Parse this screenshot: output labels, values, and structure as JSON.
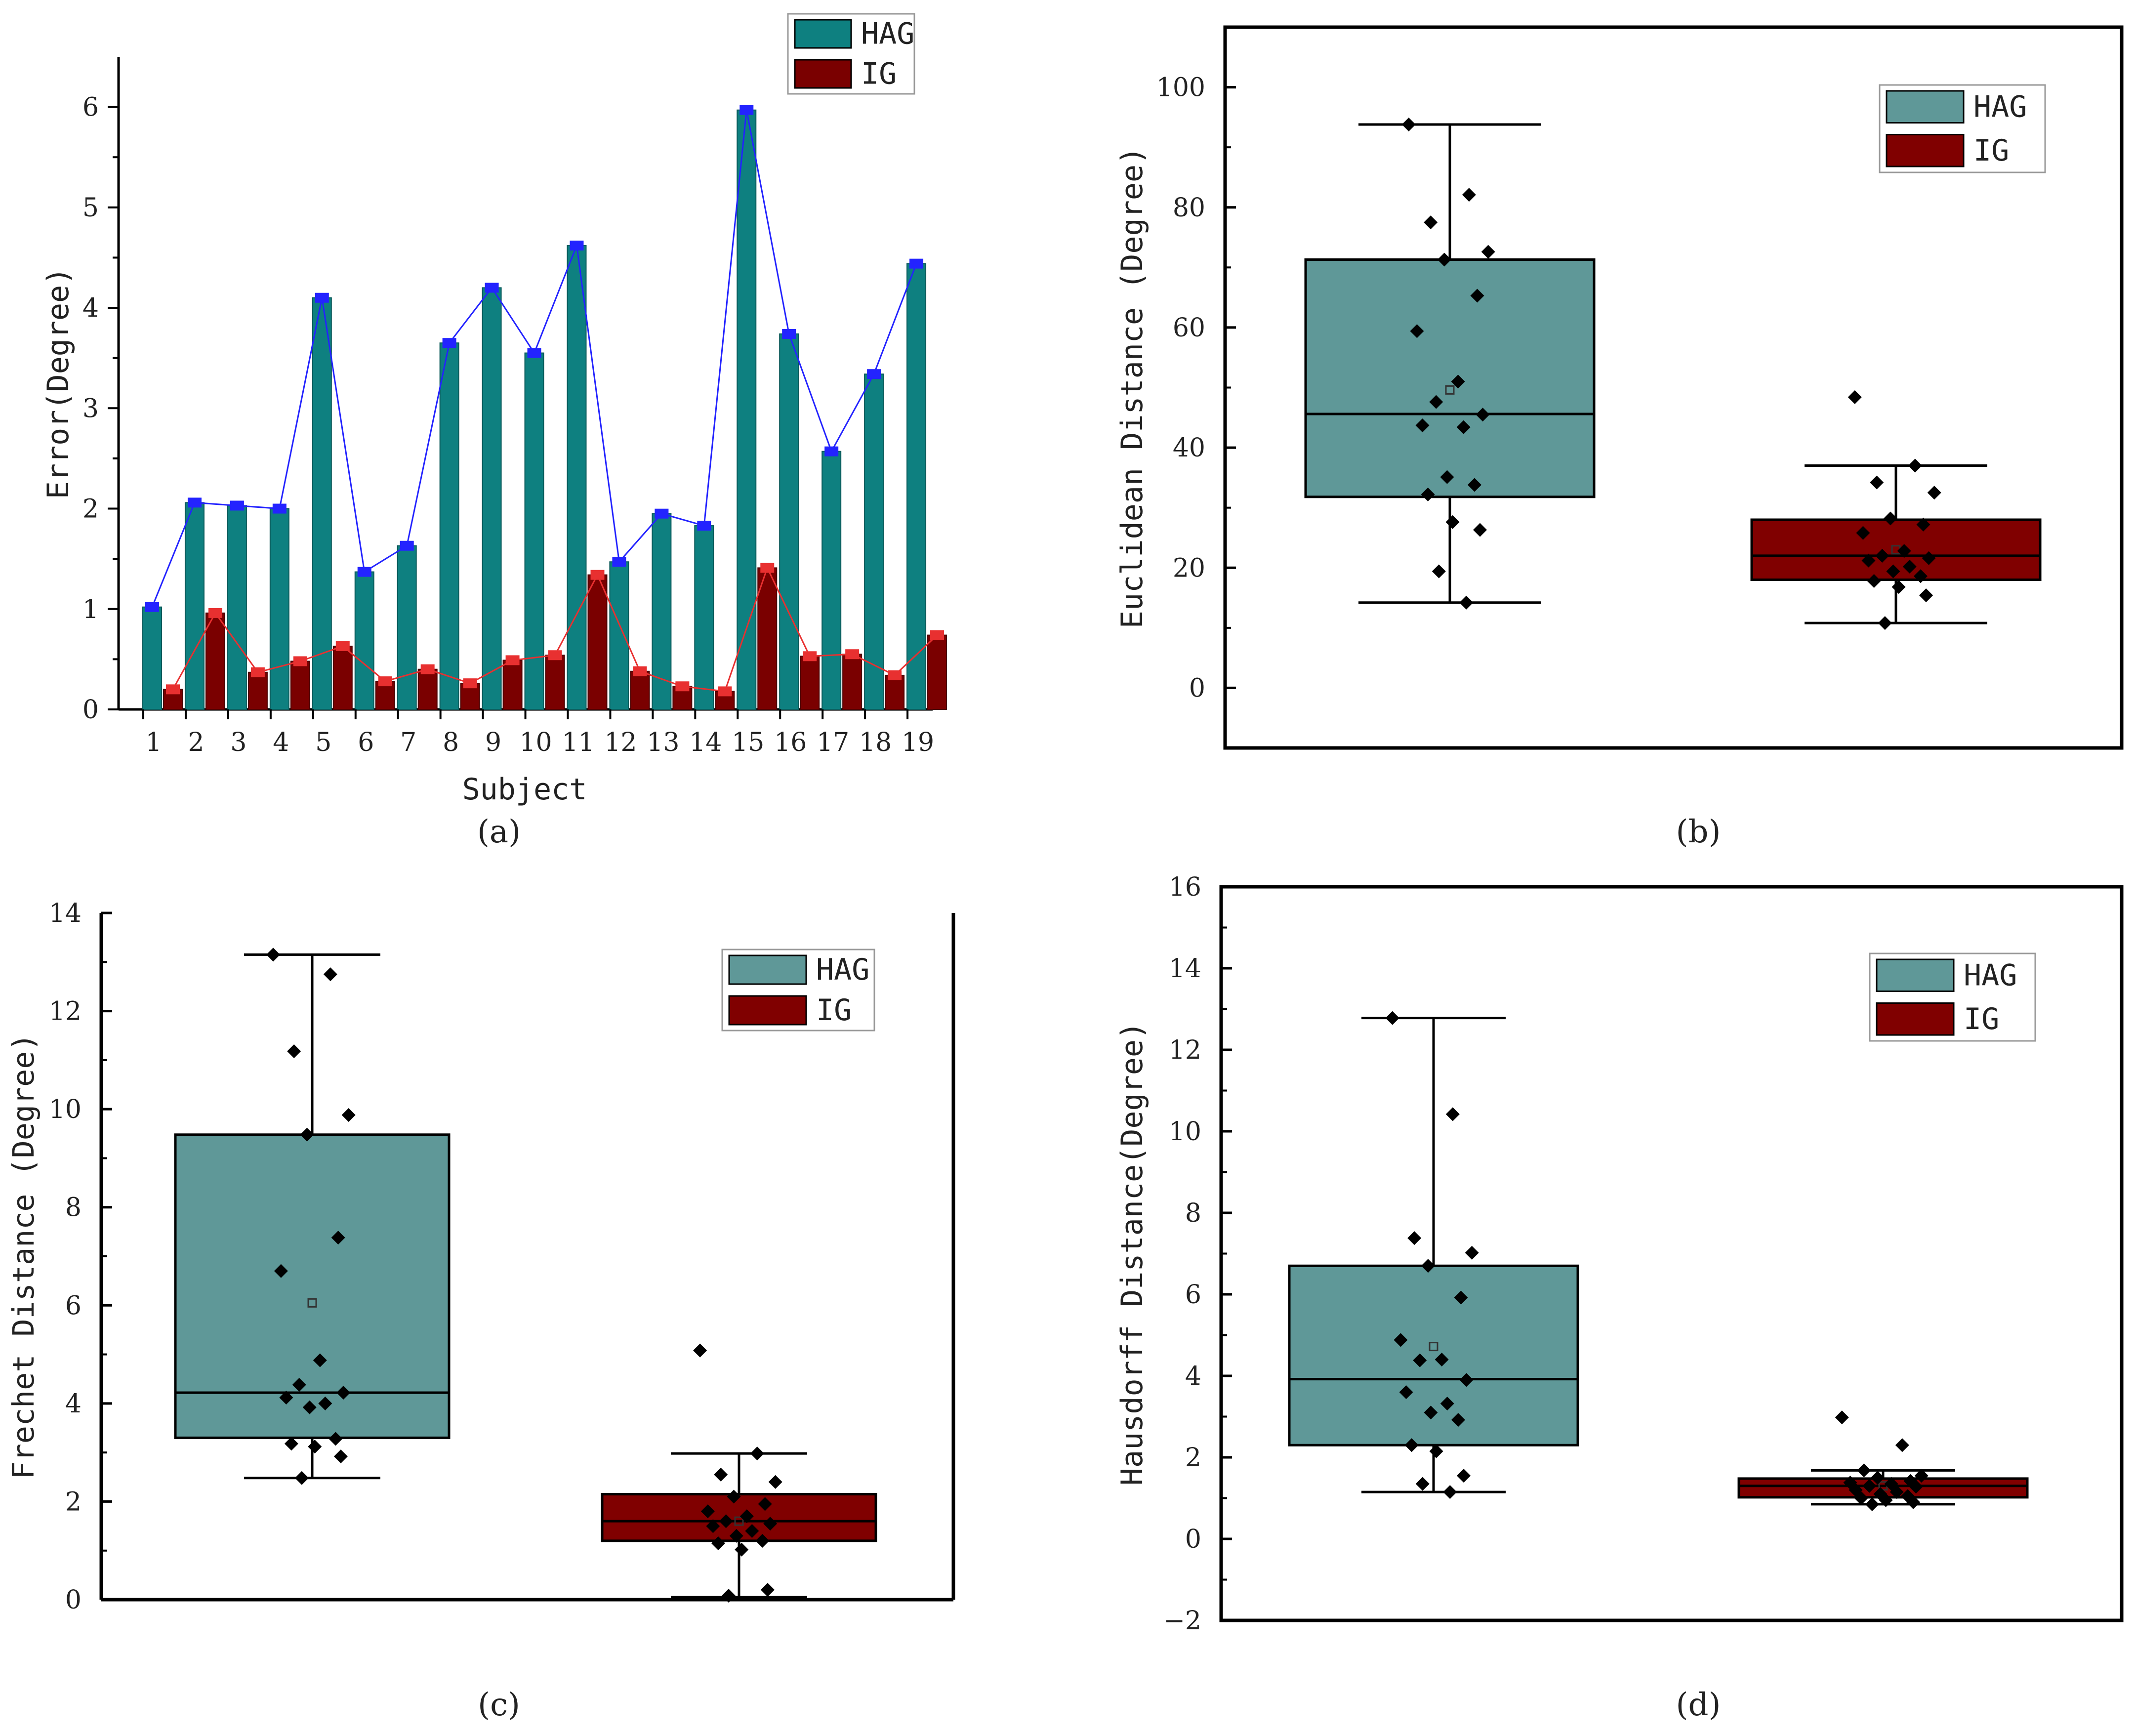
{
  "colors": {
    "hag_bar": "#0e8080",
    "ig_bar": "#7a0000",
    "hag_line": "#2323ff",
    "ig_line": "#e83030",
    "hag_box": "#5f9898",
    "ig_box": "#800000",
    "axis": "#000000"
  },
  "chart_data": [
    {
      "type": "bar",
      "caption": "(a)",
      "xlabel": "Subject",
      "ylabel": "Error(Degree)",
      "ylim": [
        0,
        6.5
      ],
      "yticks": [
        "0",
        "1",
        "2",
        "3",
        "4",
        "5",
        "6"
      ],
      "categories": [
        "1",
        "2",
        "3",
        "4",
        "5",
        "6",
        "7",
        "8",
        "9",
        "10",
        "11",
        "12",
        "13",
        "14",
        "15",
        "16",
        "17",
        "18",
        "19"
      ],
      "legend": {
        "placement": "top-right",
        "entries": [
          "HAG",
          "IG"
        ]
      },
      "series": [
        {
          "name": "HAG",
          "values": [
            1.02,
            2.06,
            2.03,
            2.0,
            4.1,
            1.37,
            1.63,
            3.65,
            4.2,
            3.55,
            4.62,
            1.47,
            1.95,
            1.83,
            5.97,
            3.74,
            2.57,
            3.34,
            4.44
          ]
        },
        {
          "name": "IG",
          "values": [
            0.2,
            0.96,
            0.37,
            0.48,
            0.63,
            0.28,
            0.4,
            0.26,
            0.49,
            0.54,
            1.34,
            0.38,
            0.23,
            0.18,
            1.41,
            0.53,
            0.55,
            0.34,
            0.74
          ]
        }
      ]
    },
    {
      "type": "box",
      "caption": "(b)",
      "ylabel": "Euclidean Distance (Degree)",
      "ylim": [
        -10,
        110
      ],
      "yticks": [
        "0",
        "20",
        "40",
        "60",
        "80",
        "100"
      ],
      "legend": {
        "placement": "top-right",
        "entries": [
          "HAG",
          "IG"
        ]
      },
      "groups": [
        {
          "name": "HAG",
          "whisker_low": 14.2,
          "q1": 31.8,
          "median": 45.6,
          "q3": 71.3,
          "whisker_high": 93.8,
          "mean": 49.6,
          "points": [
            93.8,
            82.1,
            77.5,
            72.6,
            71.3,
            65.3,
            59.4,
            51.0,
            47.6,
            45.5,
            43.7,
            43.4,
            35.1,
            33.8,
            32.2,
            27.6,
            26.3,
            19.4,
            14.2
          ]
        },
        {
          "name": "IG",
          "whisker_low": 10.8,
          "q1": 18.0,
          "median": 22.0,
          "q3": 28.0,
          "whisker_high": 37.0,
          "mean": 23.0,
          "points": [
            48.4,
            37.0,
            34.2,
            32.5,
            28.2,
            27.2,
            25.8,
            22.8,
            22.0,
            21.6,
            21.2,
            20.2,
            19.4,
            18.6,
            17.8,
            16.8,
            15.4,
            10.8
          ]
        }
      ]
    },
    {
      "type": "box",
      "caption": "(c)",
      "ylabel": "Frechet Distance (Degree)",
      "ylim": [
        0,
        14
      ],
      "yticks": [
        "0",
        "2",
        "4",
        "6",
        "8",
        "10",
        "12",
        "14"
      ],
      "legend": {
        "placement": "top-right",
        "entries": [
          "HAG",
          "IG"
        ]
      },
      "groups": [
        {
          "name": "HAG",
          "whisker_low": 2.48,
          "q1": 3.3,
          "median": 4.22,
          "q3": 9.48,
          "whisker_high": 13.15,
          "mean": 6.05,
          "points": [
            13.15,
            12.75,
            11.18,
            9.88,
            9.48,
            7.38,
            6.7,
            4.88,
            4.38,
            4.22,
            4.12,
            4.0,
            3.92,
            3.28,
            3.18,
            3.12,
            2.92,
            2.48
          ]
        },
        {
          "name": "IG",
          "whisker_low": 0.05,
          "q1": 1.2,
          "median": 1.6,
          "q3": 2.15,
          "whisker_high": 2.98,
          "mean": 1.6,
          "points": [
            5.08,
            2.98,
            2.55,
            2.4,
            2.1,
            1.95,
            1.8,
            1.7,
            1.6,
            1.55,
            1.5,
            1.4,
            1.3,
            1.2,
            1.15,
            1.02,
            0.2,
            0.08
          ]
        }
      ]
    },
    {
      "type": "box",
      "caption": "(d)",
      "ylabel": "Hausdorff Distance(Degree)",
      "ylim": [
        -2,
        16
      ],
      "yticks": [
        "−2",
        "0",
        "2",
        "4",
        "6",
        "8",
        "10",
        "12",
        "14",
        "16"
      ],
      "legend": {
        "placement": "top-right",
        "entries": [
          "HAG",
          "IG"
        ]
      },
      "groups": [
        {
          "name": "HAG",
          "whisker_low": 1.15,
          "q1": 2.3,
          "median": 3.92,
          "q3": 6.7,
          "whisker_high": 12.78,
          "mean": 4.72,
          "points": [
            12.78,
            10.42,
            7.38,
            7.02,
            6.7,
            5.92,
            4.88,
            4.4,
            4.38,
            3.9,
            3.6,
            3.32,
            3.1,
            2.92,
            2.3,
            2.15,
            1.55,
            1.35,
            1.15
          ]
        },
        {
          "name": "IG",
          "whisker_low": 0.85,
          "q1": 1.02,
          "median": 1.3,
          "q3": 1.48,
          "whisker_high": 1.68,
          "mean": 1.3,
          "points": [
            2.98,
            2.3,
            1.68,
            1.55,
            1.5,
            1.42,
            1.38,
            1.35,
            1.3,
            1.28,
            1.2,
            1.15,
            1.1,
            1.05,
            1.0,
            0.95,
            0.9,
            0.85
          ]
        }
      ]
    }
  ]
}
